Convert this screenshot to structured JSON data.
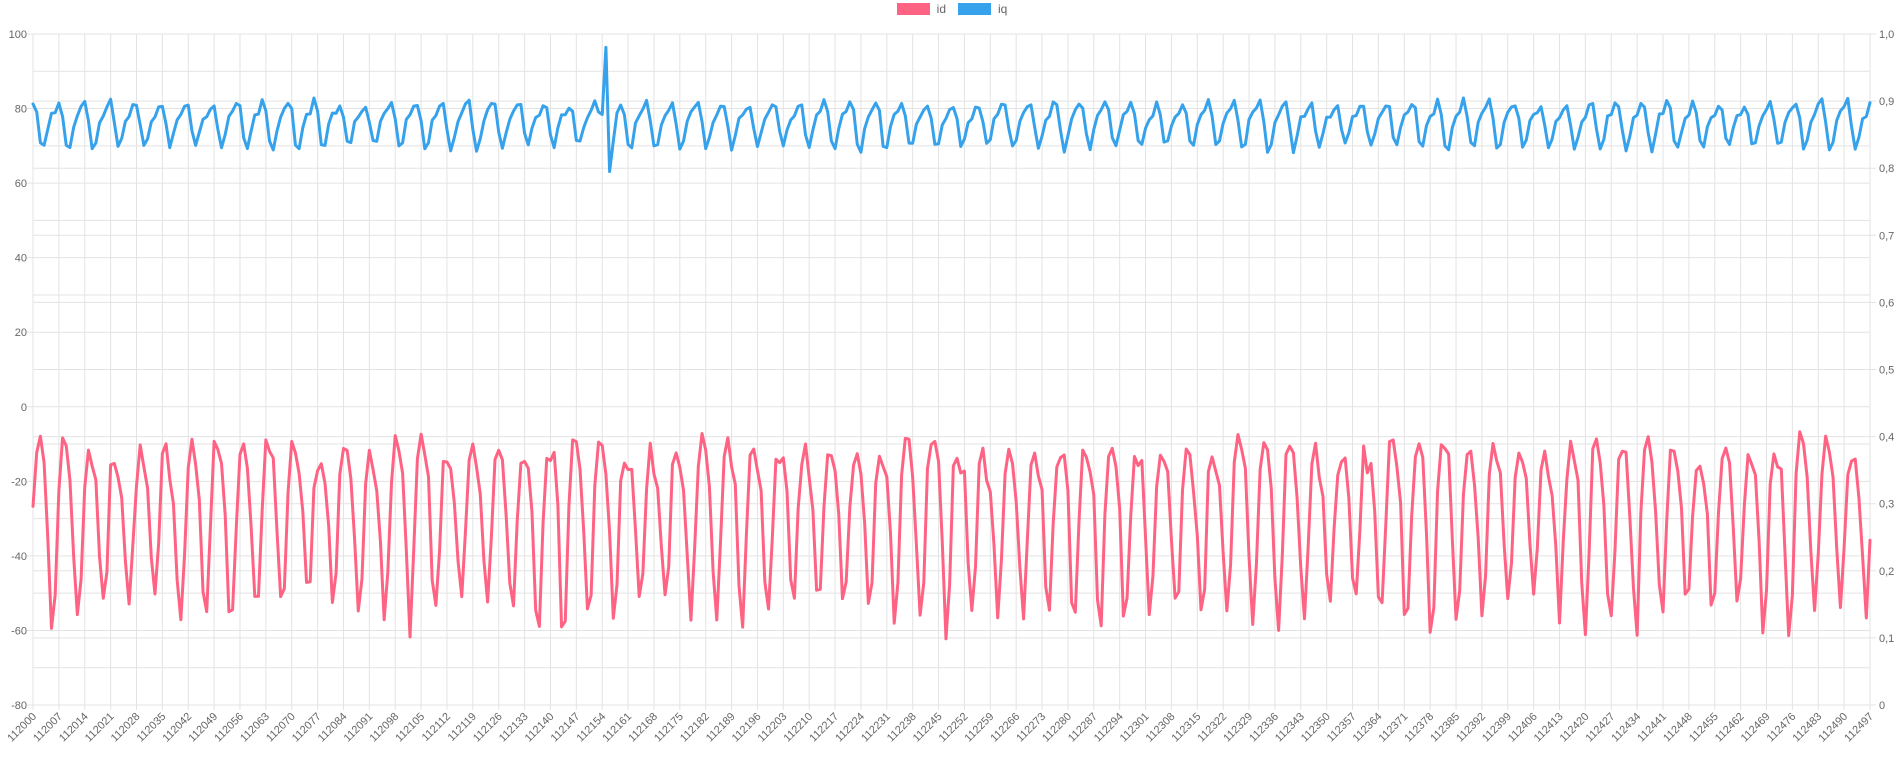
{
  "chart_data": {
    "type": "line",
    "title": "",
    "xlabel": "",
    "ylabel_left": "",
    "ylabel_right": "",
    "background": "#ffffff",
    "grid_color": "#e3e3e3",
    "text_color": "#666666",
    "tick_font_size": 11,
    "x_start": 112000,
    "x_end": 112497,
    "x_tick_step": 7,
    "x_tick_labels": [
      "112000",
      "112007",
      "112014",
      "112021",
      "112028",
      "112035",
      "112042",
      "112049",
      "112056",
      "112063",
      "112070",
      "112077",
      "112084",
      "112091",
      "112098",
      "112105",
      "112112",
      "112119",
      "112126",
      "112133",
      "112140",
      "112147",
      "112154",
      "112161",
      "112168",
      "112175",
      "112182",
      "112189",
      "112196",
      "112203",
      "112210",
      "112217",
      "112224",
      "112231",
      "112238",
      "112245",
      "112252",
      "112259",
      "112266",
      "112273",
      "112280",
      "112287",
      "112294",
      "112301",
      "112308",
      "112315",
      "112322",
      "112329",
      "112336",
      "112343",
      "112350",
      "112357",
      "112364",
      "112371",
      "112378",
      "112385",
      "112392",
      "112399",
      "112406",
      "112413",
      "112420",
      "112427",
      "112434",
      "112441",
      "112448",
      "112455",
      "112462",
      "112469",
      "112476",
      "112483",
      "112490",
      "112497"
    ],
    "left_axis": {
      "min": -80,
      "max": 100,
      "label_step": 20,
      "grid_step": 10,
      "tick_labels": [
        "100",
        "80",
        "60",
        "40",
        "20",
        "0",
        "-20",
        "-40",
        "-60",
        "-80"
      ]
    },
    "right_axis": {
      "min": 0,
      "max": 1,
      "label_step": 0.1,
      "grid_step": 0.1,
      "decimal_separator": ",",
      "tick_labels": [
        "1,0",
        "0,9",
        "0,8",
        "0,7",
        "0,6",
        "0,5",
        "0,4",
        "0,3",
        "0,2",
        "0,1",
        "0"
      ]
    },
    "legend": {
      "position": "top",
      "items": [
        {
          "label": "id",
          "color": "#ff6384"
        },
        {
          "label": "iq",
          "color": "#36a2eb"
        }
      ]
    },
    "series": [
      {
        "name": "id",
        "axis": "left",
        "color": "#ff6384",
        "line_width": 3,
        "approx_range": [
          -63,
          4
        ],
        "approx_period_samples": 6.91,
        "synthesis": {
          "seed": 7,
          "base": -29,
          "period": 6.91,
          "a1": 22,
          "p1": 0,
          "a2": 6,
          "p2": 1.2,
          "jitter": 4,
          "mod_depth": 0.13,
          "mod_period": 47,
          "mod_phase": 1.0
        },
        "overrides": []
      },
      {
        "name": "iq",
        "axis": "right",
        "color": "#36a2eb",
        "line_width": 3,
        "approx_range": [
          0.81,
          0.92
        ],
        "approx_period_samples": 6.91,
        "synthesis": {
          "seed": 99,
          "base": 0.868,
          "period": 6.91,
          "a1": 0.03,
          "p1": 2.1,
          "a2": 0.011,
          "p2": 0.4,
          "jitter": 0.005,
          "mod_depth": 0.12,
          "mod_period": 53,
          "mod_phase": 0
        },
        "anomaly_note": "single sharp spike near x=112155 up to ~0.98 then dip to ~0.80",
        "overrides": [
          {
            "index": 154,
            "value": 0.88
          },
          {
            "index": 155,
            "value": 0.98
          },
          {
            "index": 156,
            "value": 0.795
          },
          {
            "index": 157,
            "value": 0.84
          }
        ]
      }
    ]
  }
}
